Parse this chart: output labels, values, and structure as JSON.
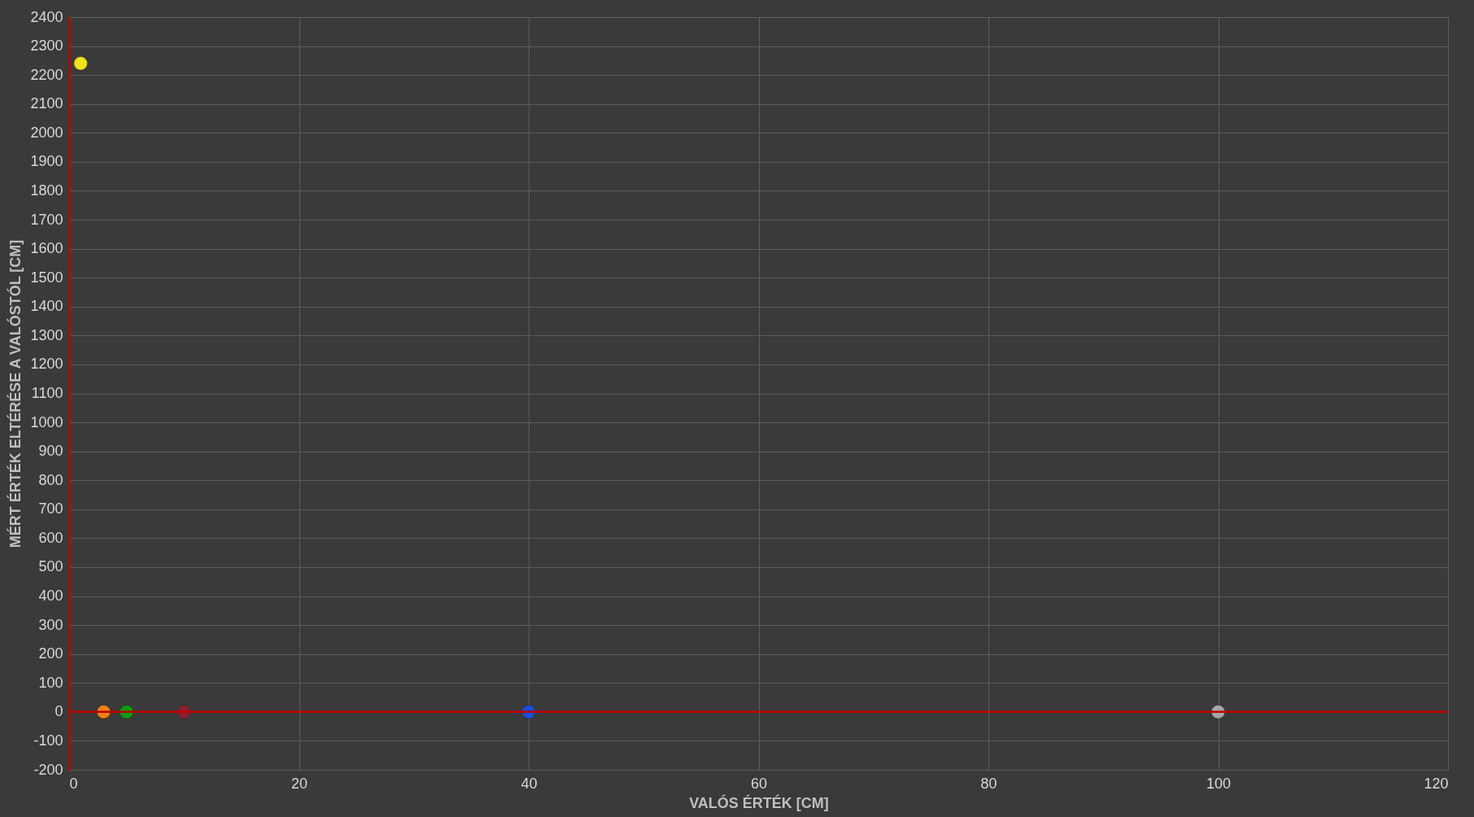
{
  "chart_data": {
    "type": "scatter",
    "xlabel": "VALÓS ÉRTÉK [CM]",
    "ylabel": "MÉRT ÉRTÉK ELTÉRÉSE A VALÓSTÓL [CM]",
    "x": [
      1,
      3,
      5,
      10,
      40,
      100
    ],
    "values": [
      2240,
      0,
      0,
      0,
      0,
      0
    ],
    "colors": [
      "#f2e21c",
      "#f08010",
      "#109a10",
      "#8a2035",
      "#1a4fd8",
      "#a6a6a6"
    ],
    "xlim": [
      0,
      120
    ],
    "xticks": [
      0,
      20,
      40,
      60,
      80,
      100,
      120
    ],
    "ylim": [
      -200,
      2400
    ],
    "yticks": [
      -200,
      -100,
      0,
      100,
      200,
      300,
      400,
      500,
      600,
      700,
      800,
      900,
      1000,
      1100,
      1200,
      1300,
      1400,
      1500,
      1600,
      1700,
      1800,
      1900,
      2000,
      2100,
      2200,
      2300,
      2400
    ],
    "grid": true,
    "marker": "circle",
    "ref_lines": [
      {
        "axis": "y",
        "value": 0,
        "color": "#c00000"
      }
    ]
  }
}
